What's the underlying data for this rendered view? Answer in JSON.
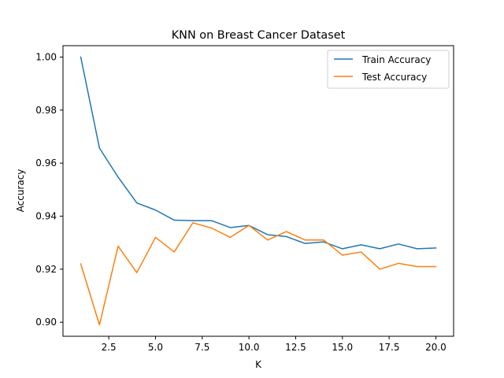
{
  "chart_data": {
    "type": "line",
    "title": "KNN on Breast Cancer Dataset",
    "xlabel": "K",
    "ylabel": "Accuracy",
    "xlim": [
      0.05,
      20.95
    ],
    "ylim": [
      0.8947,
      1.0043
    ],
    "x": [
      1,
      2,
      3,
      4,
      5,
      6,
      7,
      8,
      9,
      10,
      11,
      12,
      13,
      14,
      15,
      16,
      17,
      18,
      19,
      20
    ],
    "x_ticks": [
      2.5,
      5.0,
      7.5,
      10.0,
      12.5,
      15.0,
      17.5,
      20.0
    ],
    "x_tick_labels": [
      "2.5",
      "5.0",
      "7.5",
      "10.0",
      "12.5",
      "15.0",
      "17.5",
      "20.0"
    ],
    "y_ticks": [
      0.9,
      0.92,
      0.94,
      0.96,
      0.98,
      1.0
    ],
    "y_tick_labels": [
      "0.90",
      "0.92",
      "0.94",
      "0.96",
      "0.98",
      "1.00"
    ],
    "grid": false,
    "legend_position": "top-right",
    "series": [
      {
        "name": "Train Accuracy",
        "color": "#1f77b4",
        "values": [
          1.0,
          0.9657,
          0.9547,
          0.945,
          0.9423,
          0.9385,
          0.9383,
          0.9383,
          0.9357,
          0.9365,
          0.933,
          0.9323,
          0.9297,
          0.9303,
          0.9277,
          0.9292,
          0.9277,
          0.9295,
          0.9277,
          0.928
        ]
      },
      {
        "name": "Test Accuracy",
        "color": "#ff7f0e",
        "values": [
          0.922,
          0.899,
          0.9287,
          0.9187,
          0.932,
          0.9265,
          0.9375,
          0.9355,
          0.932,
          0.9365,
          0.931,
          0.9342,
          0.931,
          0.931,
          0.9253,
          0.9265,
          0.92,
          0.9222,
          0.921,
          0.921
        ]
      }
    ]
  }
}
